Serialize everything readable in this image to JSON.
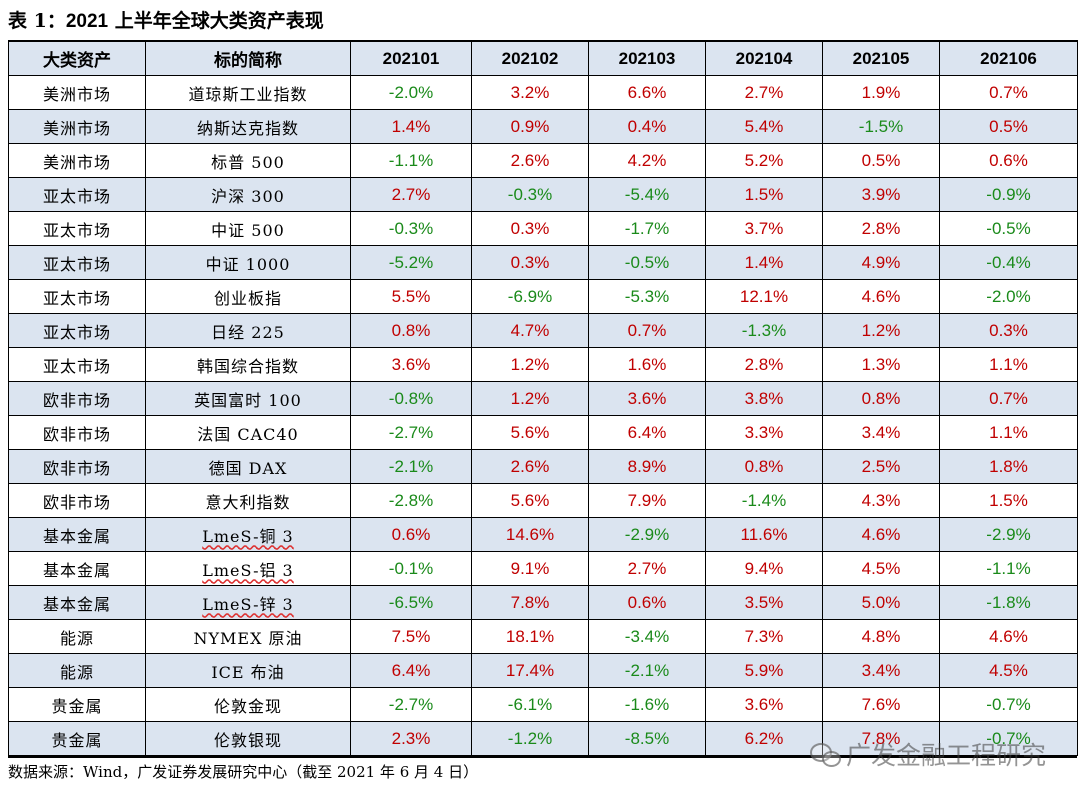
{
  "title": {
    "prefix": "表 1：",
    "year": "2021",
    "rest": " 上半年全球大类资产表现"
  },
  "headers": [
    "大类资产",
    "标的简称",
    "202101",
    "202102",
    "202103",
    "202104",
    "202105",
    "202106"
  ],
  "rows": [
    {
      "cat": "美洲市场",
      "name": "道琼斯工业指数",
      "vals": [
        "-2.0%",
        "3.2%",
        "6.6%",
        "2.7%",
        "1.9%",
        "0.7%"
      ]
    },
    {
      "cat": "美洲市场",
      "name": "纳斯达克指数",
      "vals": [
        "1.4%",
        "0.9%",
        "0.4%",
        "5.4%",
        "-1.5%",
        "0.5%"
      ]
    },
    {
      "cat": "美洲市场",
      "name": "标普 500",
      "vals": [
        "-1.1%",
        "2.6%",
        "4.2%",
        "5.2%",
        "0.5%",
        "0.6%"
      ]
    },
    {
      "cat": "亚太市场",
      "name": "沪深 300",
      "vals": [
        "2.7%",
        "-0.3%",
        "-5.4%",
        "1.5%",
        "3.9%",
        "-0.9%"
      ]
    },
    {
      "cat": "亚太市场",
      "name": "中证 500",
      "vals": [
        "-0.3%",
        "0.3%",
        "-1.7%",
        "3.7%",
        "2.8%",
        "-0.5%"
      ]
    },
    {
      "cat": "亚太市场",
      "name": "中证 1000",
      "vals": [
        "-5.2%",
        "0.3%",
        "-0.5%",
        "1.4%",
        "4.9%",
        "-0.4%"
      ]
    },
    {
      "cat": "亚太市场",
      "name": "创业板指",
      "vals": [
        "5.5%",
        "-6.9%",
        "-5.3%",
        "12.1%",
        "4.6%",
        "-2.0%"
      ]
    },
    {
      "cat": "亚太市场",
      "name": "日经 225",
      "vals": [
        "0.8%",
        "4.7%",
        "0.7%",
        "-1.3%",
        "1.2%",
        "0.3%"
      ]
    },
    {
      "cat": "亚太市场",
      "name": "韩国综合指数",
      "vals": [
        "3.6%",
        "1.2%",
        "1.6%",
        "2.8%",
        "1.3%",
        "1.1%"
      ]
    },
    {
      "cat": "欧非市场",
      "name": "英国富时 100",
      "vals": [
        "-0.8%",
        "1.2%",
        "3.6%",
        "3.8%",
        "0.8%",
        "0.7%"
      ]
    },
    {
      "cat": "欧非市场",
      "name": "法国 CAC40",
      "vals": [
        "-2.7%",
        "5.6%",
        "6.4%",
        "3.3%",
        "3.4%",
        "1.1%"
      ]
    },
    {
      "cat": "欧非市场",
      "name": "德国 DAX",
      "vals": [
        "-2.1%",
        "2.6%",
        "8.9%",
        "0.8%",
        "2.5%",
        "1.8%"
      ]
    },
    {
      "cat": "欧非市场",
      "name": "意大利指数",
      "vals": [
        "-2.8%",
        "5.6%",
        "7.9%",
        "-1.4%",
        "4.3%",
        "1.5%"
      ]
    },
    {
      "cat": "基本金属",
      "name": "LmeS-铜 3",
      "vals": [
        "0.6%",
        "14.6%",
        "-2.9%",
        "11.6%",
        "4.6%",
        "-2.9%"
      ]
    },
    {
      "cat": "基本金属",
      "name": "LmeS-铝 3",
      "vals": [
        "-0.1%",
        "9.1%",
        "2.7%",
        "9.4%",
        "4.5%",
        "-1.1%"
      ]
    },
    {
      "cat": "基本金属",
      "name": "LmeS-锌 3",
      "vals": [
        "-6.5%",
        "7.8%",
        "0.6%",
        "3.5%",
        "5.0%",
        "-1.8%"
      ]
    },
    {
      "cat": "能源",
      "name": "NYMEX 原油",
      "vals": [
        "7.5%",
        "18.1%",
        "-3.4%",
        "7.3%",
        "4.8%",
        "4.6%"
      ]
    },
    {
      "cat": "能源",
      "name": "ICE 布油",
      "vals": [
        "6.4%",
        "17.4%",
        "-2.1%",
        "5.9%",
        "3.4%",
        "4.5%"
      ]
    },
    {
      "cat": "贵金属",
      "name": "伦敦金现",
      "vals": [
        "-2.7%",
        "-6.1%",
        "-1.6%",
        "3.6%",
        "7.6%",
        "-0.7%"
      ]
    },
    {
      "cat": "贵金属",
      "name": "伦敦银现",
      "vals": [
        "2.3%",
        "-1.2%",
        "-8.5%",
        "6.2%",
        "7.8%",
        "-0.7%"
      ]
    }
  ],
  "source": "数据来源：Wind，广发证券发展研究中心（截至 2021 年 6 月 4 日）",
  "watermark": "广发金融工程研究",
  "colors": {
    "positive": "#c00000",
    "negative": "#1a8a1a",
    "header_bg": "#dbe4f0"
  }
}
